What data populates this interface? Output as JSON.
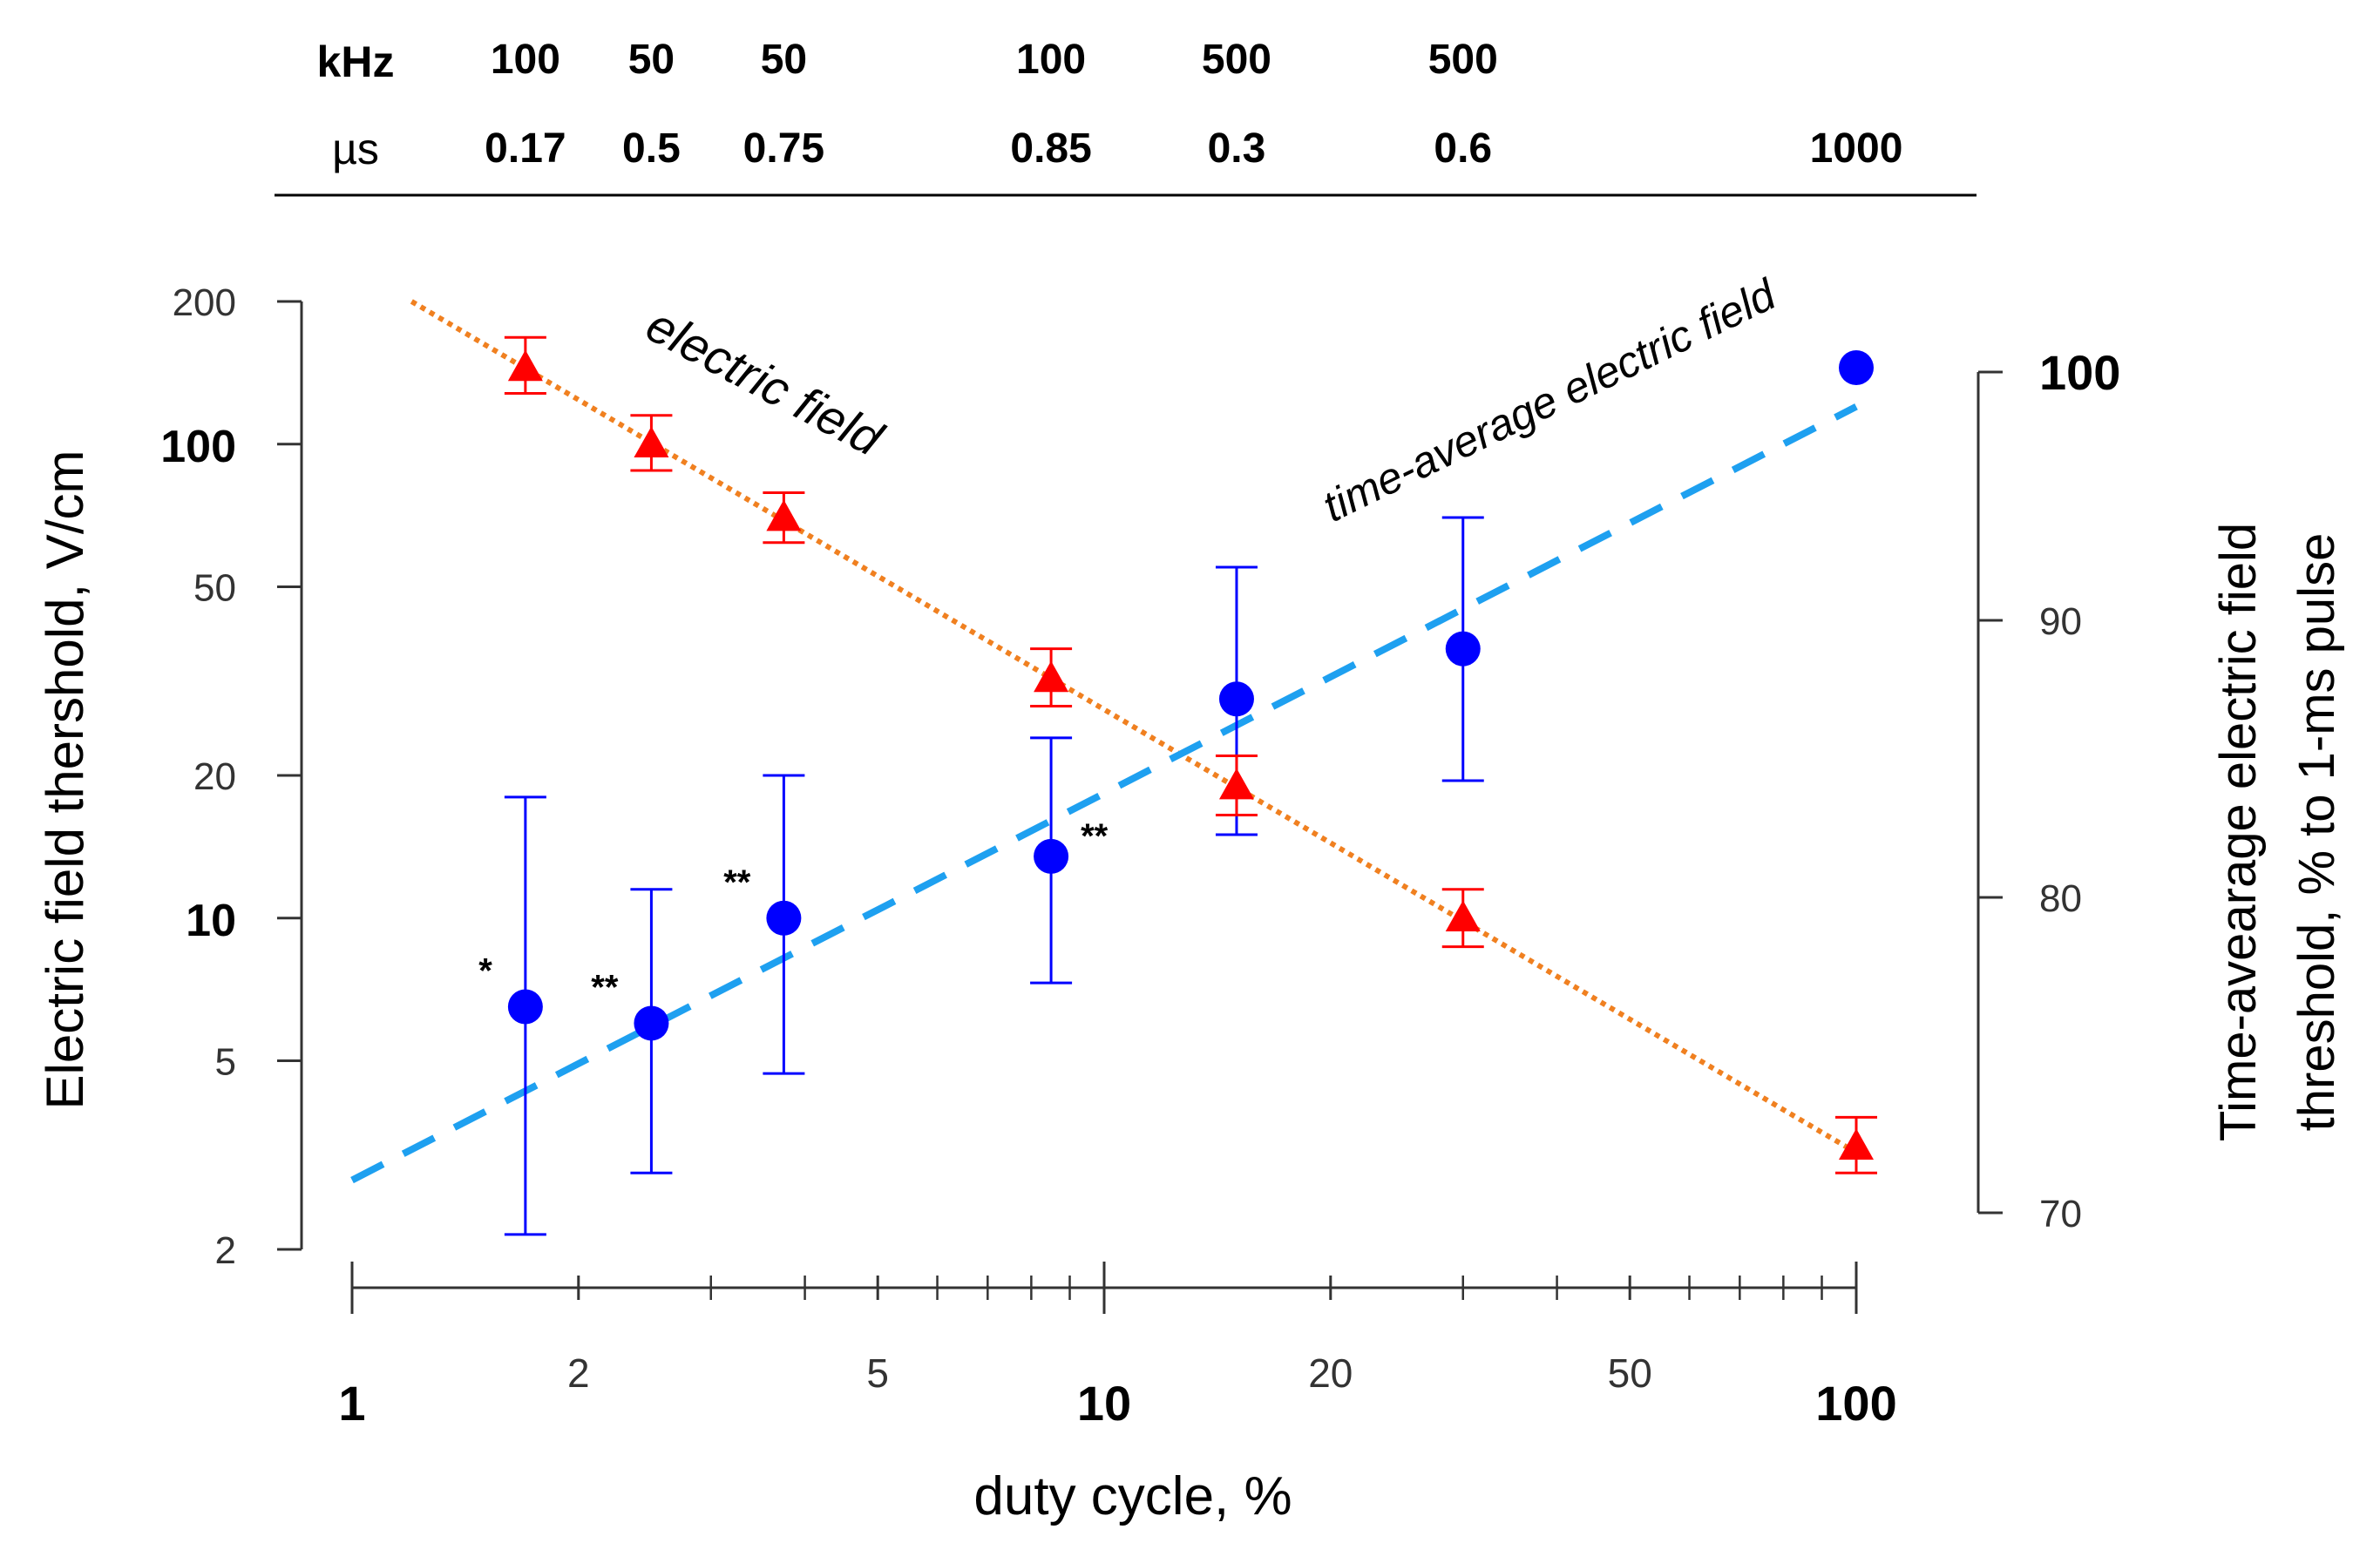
{
  "chart_data": {
    "type": "scatter",
    "header": {
      "row_labels": [
        "kHz",
        "µs"
      ],
      "columns": [
        {
          "duty": 1.7,
          "khz": "100",
          "us": "0.17"
        },
        {
          "duty": 2.5,
          "khz": "50",
          "us": "0.5"
        },
        {
          "duty": 3.75,
          "khz": "50",
          "us": "0.75"
        },
        {
          "duty": 8.5,
          "khz": "100",
          "us": "0.85"
        },
        {
          "duty": 15,
          "khz": "500",
          "us": "0.3"
        },
        {
          "duty": 30,
          "khz": "500",
          "us": "0.6"
        },
        {
          "duty": 100,
          "khz": "",
          "us": "1000"
        }
      ]
    },
    "xlabel": "duty cycle, %",
    "ylabel_left": "Electric field thershold, V/cm",
    "ylabel_right_line1": "Time-avearage electric field",
    "ylabel_right_line2": "threshold, % to 1-ms pulse",
    "xscale": "log",
    "xlim": [
      1,
      100
    ],
    "x_ticks": [
      {
        "value": 1,
        "label": "1",
        "bold": true
      },
      {
        "value": 2,
        "label": "2",
        "bold": false
      },
      {
        "value": 5,
        "label": "5",
        "bold": false
      },
      {
        "value": 10,
        "label": "10",
        "bold": true
      },
      {
        "value": 20,
        "label": "20",
        "bold": false
      },
      {
        "value": 50,
        "label": "50",
        "bold": false
      },
      {
        "value": 100,
        "label": "100",
        "bold": true
      }
    ],
    "yscale_left": "log",
    "ylim_left": [
      2,
      200
    ],
    "y_ticks_left": [
      {
        "value": 2,
        "label": "2",
        "bold": false
      },
      {
        "value": 5,
        "label": "5",
        "bold": false
      },
      {
        "value": 10,
        "label": "10",
        "bold": true
      },
      {
        "value": 20,
        "label": "20",
        "bold": false
      },
      {
        "value": 50,
        "label": "50",
        "bold": false
      },
      {
        "value": 100,
        "label": "100",
        "bold": true
      },
      {
        "value": 200,
        "label": "200",
        "bold": false
      }
    ],
    "y_ticks_right": [
      {
        "value": 70,
        "label": "70",
        "bold": false
      },
      {
        "value": 80,
        "label": "80",
        "bold": false
      },
      {
        "value": 90,
        "label": "90",
        "bold": false
      },
      {
        "value": 100,
        "label": "100",
        "bold": true
      }
    ],
    "series": [
      {
        "name": "electric field",
        "color": "#ff0000",
        "marker": "triangle",
        "points": [
          {
            "x": 1.7,
            "y": 145,
            "ylo": 128,
            "yhi": 168
          },
          {
            "x": 2.5,
            "y": 100,
            "ylo": 88,
            "yhi": 115
          },
          {
            "x": 3.75,
            "y": 70,
            "ylo": 62,
            "yhi": 79
          },
          {
            "x": 8.5,
            "y": 32,
            "ylo": 28,
            "yhi": 37
          },
          {
            "x": 15,
            "y": 19,
            "ylo": 16.5,
            "yhi": 22
          },
          {
            "x": 30,
            "y": 10,
            "ylo": 8.7,
            "yhi": 11.5
          },
          {
            "x": 100,
            "y": 3.3,
            "ylo": 2.9,
            "yhi": 3.8
          }
        ],
        "fit": {
          "x": [
            1.2,
            100
          ],
          "y": [
            200,
            3.2
          ],
          "color": "#f08020",
          "style": "dotted"
        }
      },
      {
        "name": "time-average electric field",
        "color": "#0000ff",
        "marker": "circle",
        "points": [
          {
            "x": 1.7,
            "y": 6.5,
            "ylo": 2.15,
            "yhi": 18,
            "mark": "*"
          },
          {
            "x": 2.5,
            "y": 6,
            "ylo": 2.9,
            "yhi": 11.5,
            "mark": "**"
          },
          {
            "x": 3.75,
            "y": 10,
            "ylo": 4.7,
            "yhi": 20,
            "mark": "**"
          },
          {
            "x": 8.5,
            "y": 13.5,
            "ylo": 7.3,
            "yhi": 24,
            "mark": "**"
          },
          {
            "x": 15,
            "y": 29,
            "ylo": 15,
            "yhi": 55,
            "mark": ""
          },
          {
            "x": 30,
            "y": 37,
            "ylo": 19.5,
            "yhi": 70,
            "mark": ""
          },
          {
            "x": 100,
            "y": 145,
            "ylo": 145,
            "yhi": 145,
            "mark": ""
          }
        ],
        "fit": {
          "x": [
            1,
            100
          ],
          "y": [
            2.8,
            120
          ],
          "color": "#1ea0f0",
          "style": "dashed"
        }
      }
    ],
    "annotations": [
      {
        "text": "electric field",
        "color": "#ff0000"
      },
      {
        "text": "time-average electric field",
        "color": "#0000ff"
      }
    ]
  }
}
